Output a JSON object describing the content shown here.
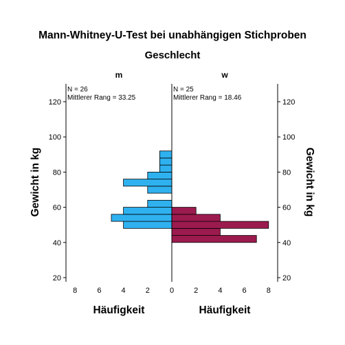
{
  "chart_data": {
    "type": "bar",
    "title": "Mann-Whitney-U-Test bei unabhängigen Stichproben",
    "subtitle": "Geschlecht",
    "ylabel": "Gewicht in kg",
    "xlabel": "Häufigkeit",
    "ylim": [
      18,
      130
    ],
    "yticks": [
      20,
      40,
      60,
      80,
      100,
      120
    ],
    "xlim": [
      0,
      9
    ],
    "xticks": [
      8,
      6,
      4,
      2,
      0
    ],
    "bin_width": 4,
    "orientation": "back-to-back horizontal histogram",
    "groups": [
      {
        "name": "m",
        "n_label": "N = 26",
        "rank_label": "Mittlerer Rang = 33.25",
        "color": "#2fb1f0",
        "bins": [
          {
            "start": 48,
            "end": 52,
            "count": 4
          },
          {
            "start": 52,
            "end": 56,
            "count": 5
          },
          {
            "start": 56,
            "end": 60,
            "count": 4
          },
          {
            "start": 60,
            "end": 64,
            "count": 2
          },
          {
            "start": 68,
            "end": 72,
            "count": 2
          },
          {
            "start": 72,
            "end": 76,
            "count": 4
          },
          {
            "start": 76,
            "end": 80,
            "count": 2
          },
          {
            "start": 80,
            "end": 84,
            "count": 1
          },
          {
            "start": 84,
            "end": 88,
            "count": 1
          },
          {
            "start": 88,
            "end": 92,
            "count": 1
          }
        ]
      },
      {
        "name": "w",
        "n_label": "N = 25",
        "rank_label": "Mittlerer Rang = 18.46",
        "color": "#9c1b4e",
        "bins": [
          {
            "start": 40,
            "end": 44,
            "count": 7
          },
          {
            "start": 44,
            "end": 48,
            "count": 4
          },
          {
            "start": 48,
            "end": 52,
            "count": 8
          },
          {
            "start": 52,
            "end": 56,
            "count": 4
          },
          {
            "start": 56,
            "end": 60,
            "count": 2
          }
        ]
      }
    ]
  }
}
